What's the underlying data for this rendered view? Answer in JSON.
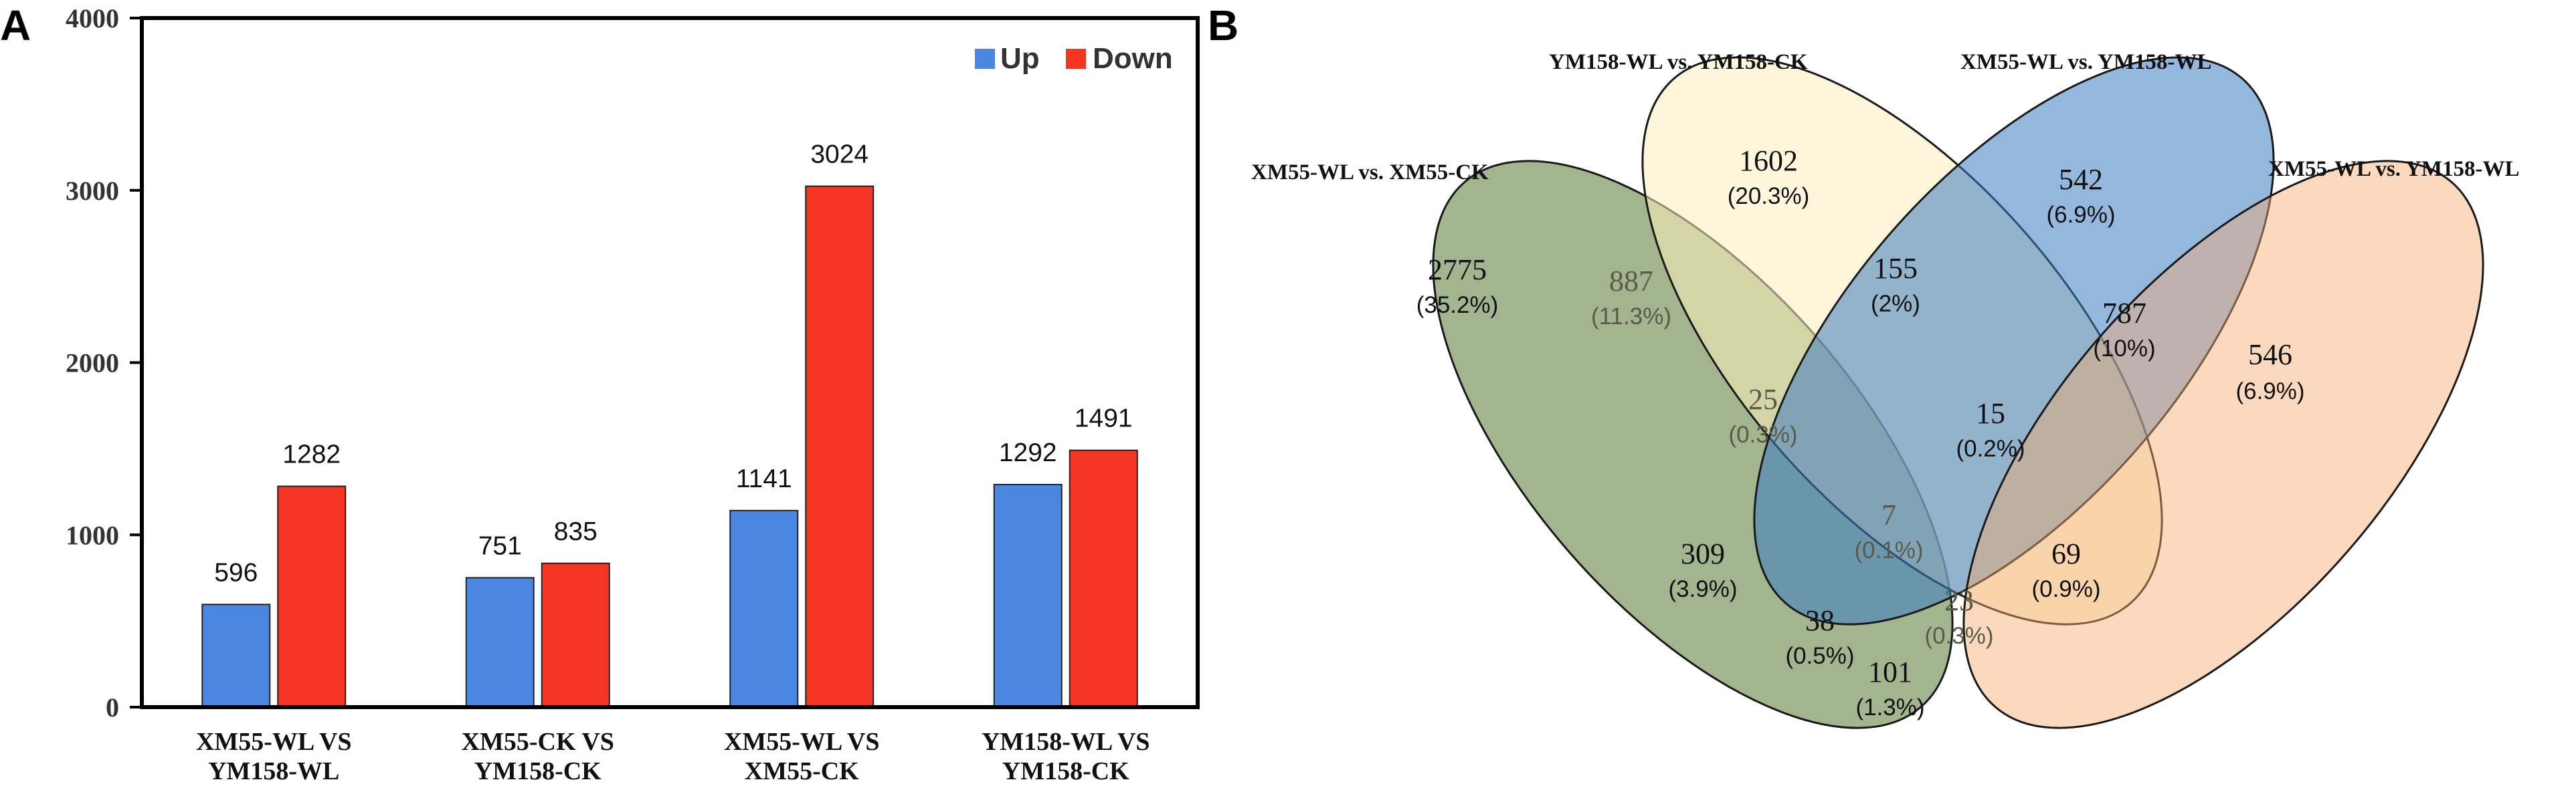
{
  "panel_a": {
    "label": "A"
  },
  "panel_b": {
    "label": "B"
  },
  "colors": {
    "up": "#4a86e2",
    "down": "#f43524"
  },
  "chart_data": [
    {
      "type": "bar",
      "title": "",
      "xlabel": "",
      "ylabel": "",
      "ylim": [
        0,
        4000
      ],
      "yticks": [
        "0",
        "1000",
        "2000",
        "3000",
        "4000"
      ],
      "categories": [
        [
          "XM55-WL VS",
          "YM158-WL"
        ],
        [
          "XM55-CK VS",
          "YM158-CK"
        ],
        [
          "XM55-WL VS",
          "XM55-CK"
        ],
        [
          "YM158-WL VS",
          "YM158-CK"
        ]
      ],
      "series": [
        {
          "name": "Up",
          "values": [
            596,
            751,
            1141,
            1292
          ]
        },
        {
          "name": "Down",
          "values": [
            1282,
            835,
            3024,
            1491
          ]
        }
      ],
      "legend": {
        "position": "top-right",
        "entries": [
          "Up",
          "Down"
        ]
      }
    },
    {
      "type": "venn",
      "sets": [
        "XM55-WL vs. XM55-CK",
        "YM158-WL vs. YM158-CK",
        "XM55-WL vs. YM158-WL",
        "XM55-WL vs. YM158-WL"
      ],
      "regions": [
        {
          "count": "2775",
          "pct": "(35.2%)"
        },
        {
          "count": "1602",
          "pct": "(20.3%)"
        },
        {
          "count": "542",
          "pct": "(6.9%)"
        },
        {
          "count": "546",
          "pct": "(6.9%)"
        },
        {
          "count": "887",
          "pct": "(11.3%)"
        },
        {
          "count": "155",
          "pct": "(2%)"
        },
        {
          "count": "787",
          "pct": "(10%)"
        },
        {
          "count": "25",
          "pct": "(0.3%)"
        },
        {
          "count": "15",
          "pct": "(0.2%)"
        },
        {
          "count": "7",
          "pct": "(0.1%)"
        },
        {
          "count": "309",
          "pct": "(3.9%)"
        },
        {
          "count": "69",
          "pct": "(0.9%)"
        },
        {
          "count": "38",
          "pct": "(0.5%)"
        },
        {
          "count": "23",
          "pct": "(0.3%)"
        },
        {
          "count": "101",
          "pct": "(1.3%)"
        }
      ]
    }
  ]
}
